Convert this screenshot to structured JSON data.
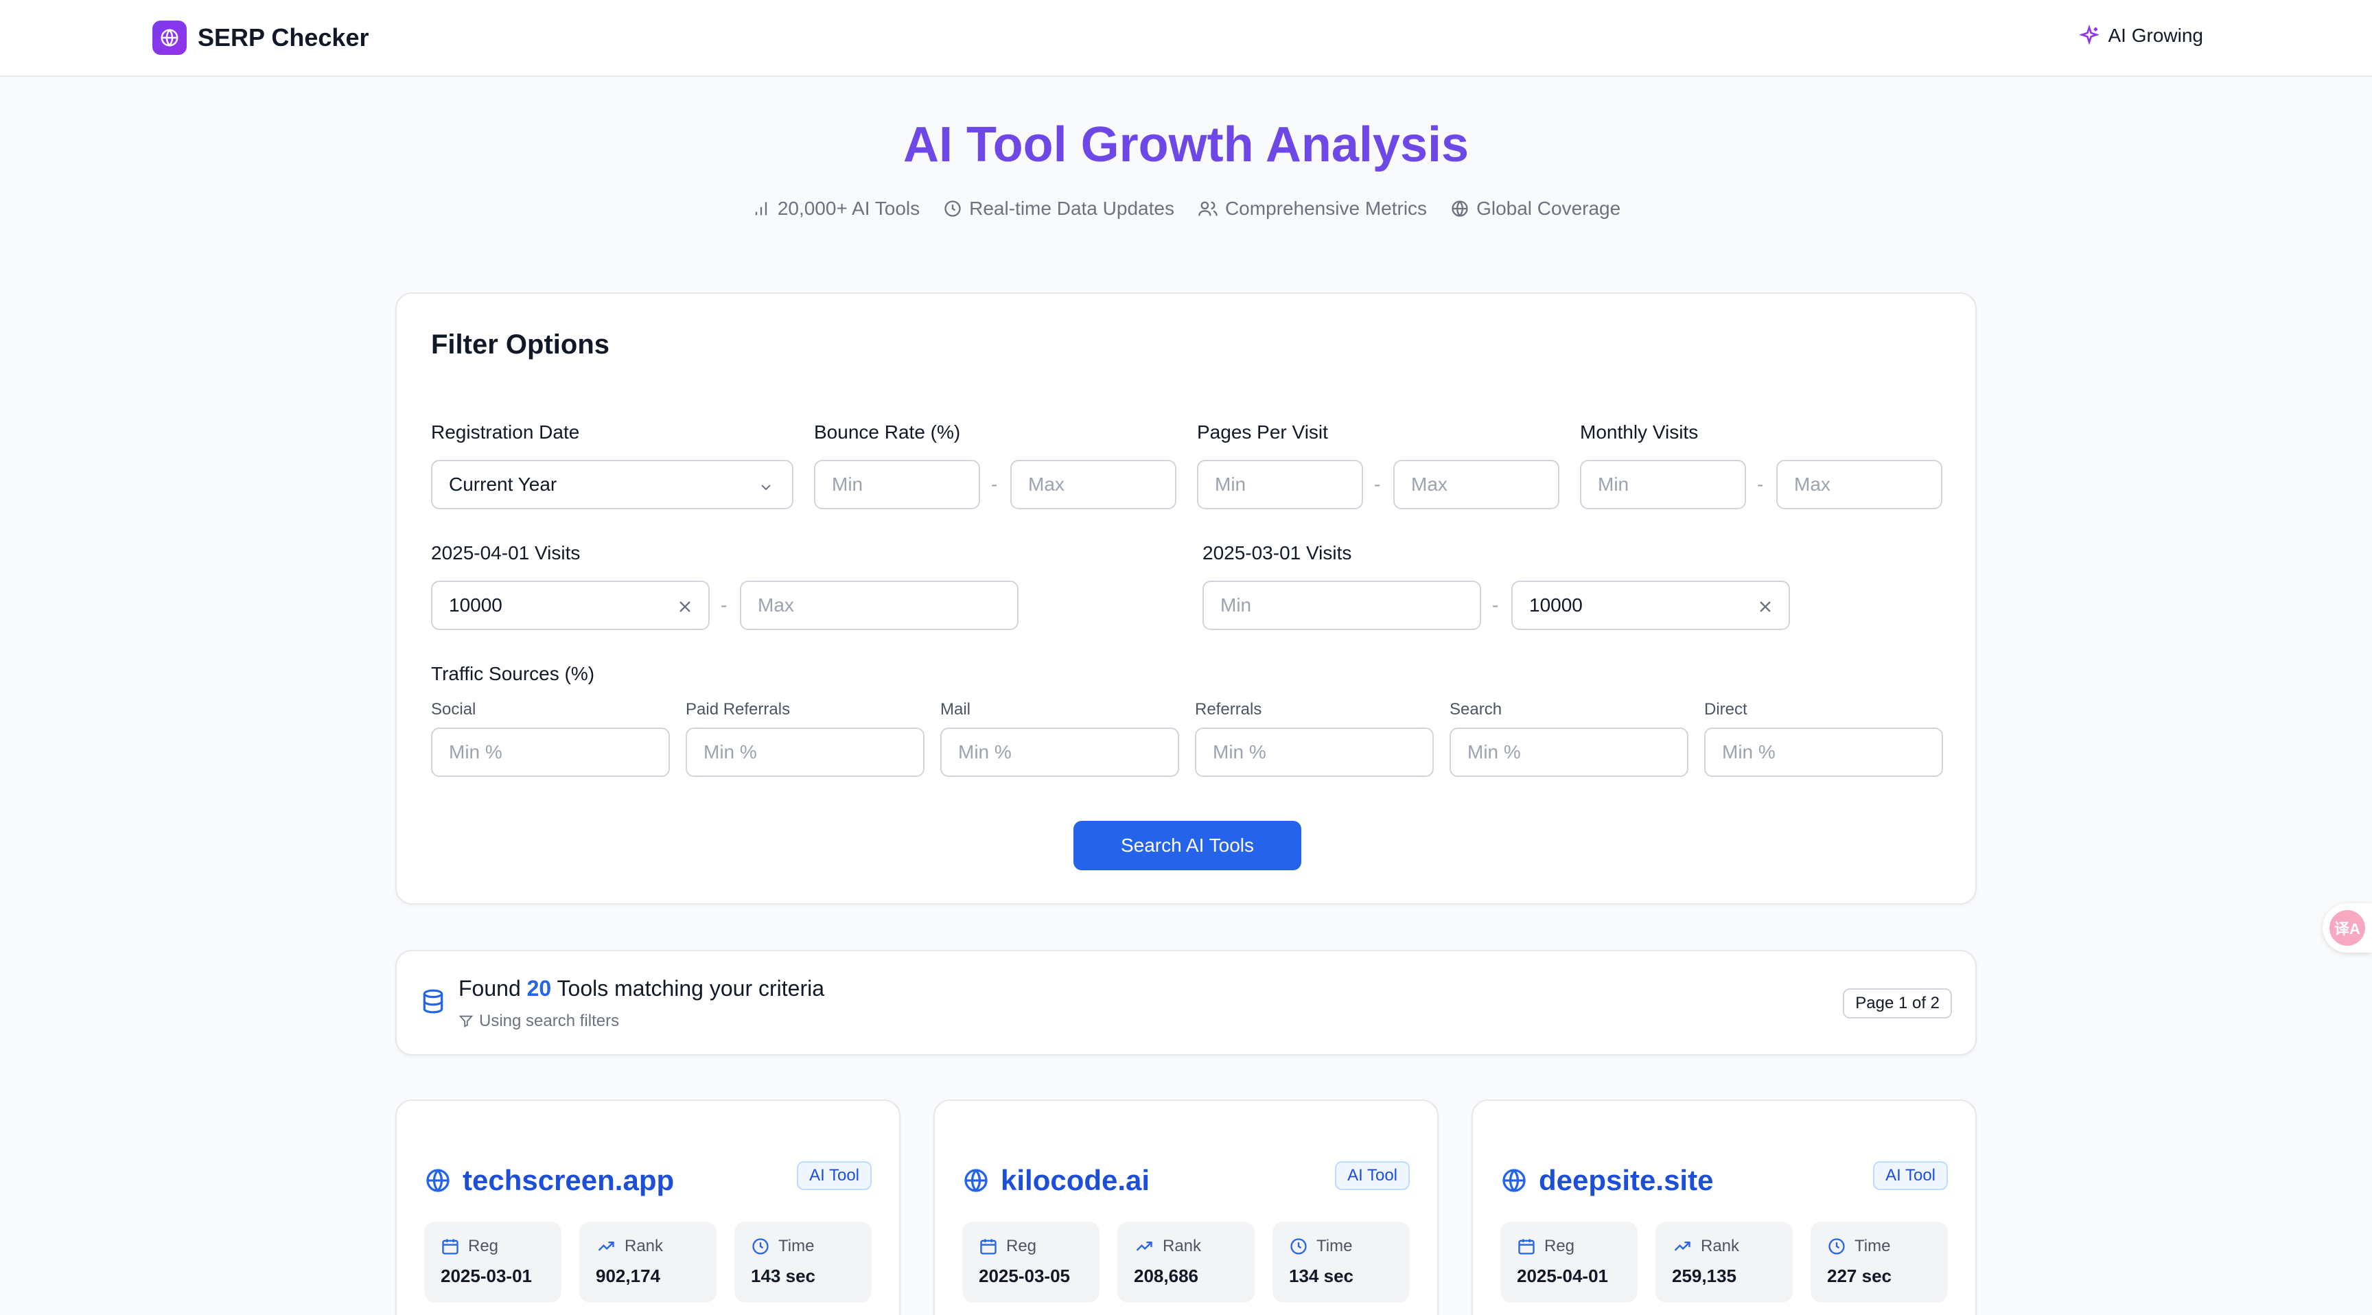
{
  "header": {
    "brand": "SERP Checker",
    "nav_link": "AI Growing"
  },
  "hero": {
    "title": "AI Tool Growth Analysis",
    "features": [
      {
        "icon": "bar-chart-icon",
        "label": "20,000+ AI Tools"
      },
      {
        "icon": "clock-icon",
        "label": "Real-time Data Updates"
      },
      {
        "icon": "users-icon",
        "label": "Comprehensive Metrics"
      },
      {
        "icon": "globe-icon",
        "label": "Global Coverage"
      }
    ]
  },
  "filters": {
    "title": "Filter Options",
    "registration_date": {
      "label": "Registration Date",
      "value": "Current Year"
    },
    "bounce_rate": {
      "label": "Bounce Rate (%)",
      "min_placeholder": "Min",
      "max_placeholder": "Max"
    },
    "pages_per_visit": {
      "label": "Pages Per Visit",
      "min_placeholder": "Min",
      "max_placeholder": "Max"
    },
    "monthly_visits": {
      "label": "Monthly Visits",
      "min_placeholder": "Min",
      "max_placeholder": "Max"
    },
    "visits_a": {
      "label": "2025-04-01 Visits",
      "min_value": "10000",
      "max_placeholder": "Max"
    },
    "visits_b": {
      "label": "2025-03-01 Visits",
      "min_placeholder": "Min",
      "max_value": "10000"
    },
    "dash": "-",
    "traffic_sources": {
      "label": "Traffic Sources (%)",
      "placeholder": "Min %",
      "items": [
        "Social",
        "Paid Referrals",
        "Mail",
        "Referrals",
        "Search",
        "Direct"
      ]
    },
    "search_button": "Search AI Tools"
  },
  "results": {
    "prefix": "Found",
    "count": "20",
    "suffix": "Tools matching your criteria",
    "sub": "Using search filters",
    "page": "Page 1 of 2"
  },
  "tools": [
    {
      "name": "techscreen.app",
      "badge": "AI Tool",
      "reg_label": "Reg",
      "reg": "2025-03-01",
      "rank_label": "Rank",
      "rank": "902,174",
      "time_label": "Time",
      "time": "143 sec"
    },
    {
      "name": "kilocode.ai",
      "badge": "AI Tool",
      "reg_label": "Reg",
      "reg": "2025-03-05",
      "rank_label": "Rank",
      "rank": "208,686",
      "time_label": "Time",
      "time": "134 sec"
    },
    {
      "name": "deepsite.site",
      "badge": "AI Tool",
      "reg_label": "Reg",
      "reg": "2025-04-01",
      "rank_label": "Rank",
      "rank": "259,135",
      "time_label": "Time",
      "time": "227 sec"
    }
  ],
  "translate_fab": "译A",
  "colors": {
    "accent": "#6d48e7",
    "primary": "#2563eb",
    "link": "#1d4ed8"
  }
}
